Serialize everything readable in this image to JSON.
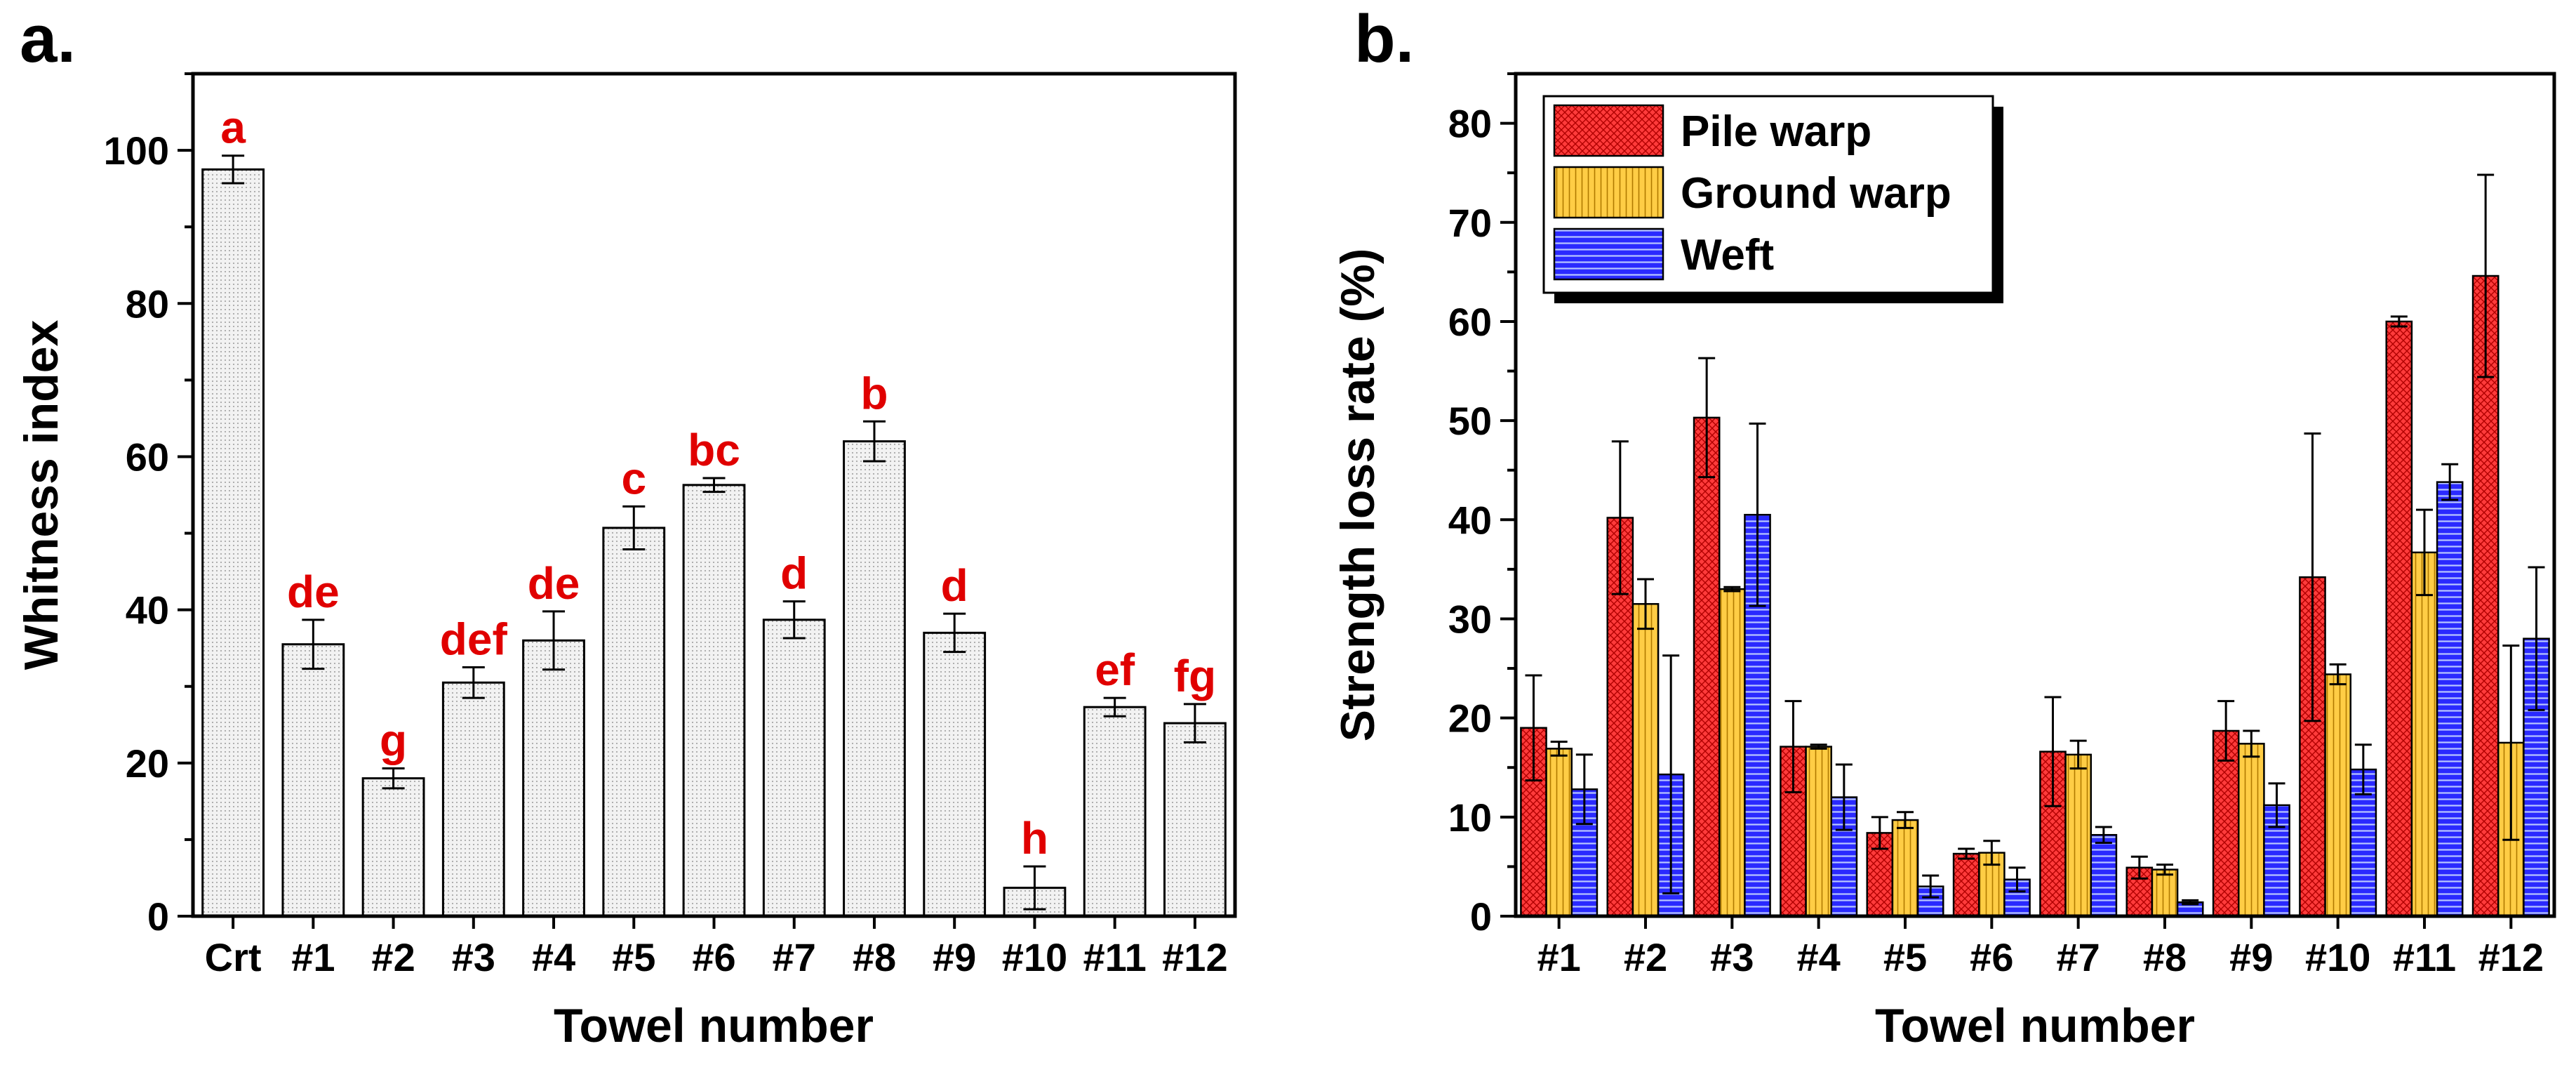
{
  "chart_data": [
    {
      "type": "bar",
      "panel": "a.",
      "categories": [
        "Crt",
        "#1",
        "#2",
        "#3",
        "#4",
        "#5",
        "#6",
        "#7",
        "#8",
        "#9",
        "#10",
        "#11",
        "#12"
      ],
      "values": [
        97.5,
        35.5,
        18,
        30.5,
        36,
        50.7,
        56.3,
        38.7,
        62,
        37,
        3.7,
        27.3,
        25.2
      ],
      "errors": [
        1.8,
        3.2,
        1.3,
        2.0,
        3.8,
        2.8,
        0.9,
        2.4,
        2.6,
        2.5,
        2.8,
        1.2,
        2.5
      ],
      "significance": [
        "a",
        "de",
        "g",
        "def",
        "de",
        "c",
        "bc",
        "d",
        "b",
        "d",
        "h",
        "ef",
        "fg"
      ],
      "xlabel": "Towel number",
      "ylabel": "Whitness index",
      "ylim": [
        0,
        110
      ],
      "yticks": [
        0,
        20,
        40,
        60,
        80,
        100
      ],
      "bar_fill": "#eeeeee",
      "sig_color": "#e00000"
    },
    {
      "type": "bar",
      "panel": "b.",
      "categories": [
        "#1",
        "#2",
        "#3",
        "#4",
        "#5",
        "#6",
        "#7",
        "#8",
        "#9",
        "#10",
        "#11",
        "#12"
      ],
      "series": [
        {
          "name": "Pile warp",
          "color": "#ff3b3b",
          "values": [
            19,
            40.2,
            50.3,
            17.1,
            8.4,
            6.3,
            16.6,
            4.9,
            18.7,
            34.2,
            60,
            64.6
          ],
          "errors": [
            5.3,
            7.7,
            6.0,
            4.6,
            1.6,
            0.5,
            5.5,
            1.1,
            3.0,
            14.5,
            0.5,
            10.2
          ]
        },
        {
          "name": "Ground warp",
          "color": "#ffc83c",
          "values": [
            16.9,
            31.5,
            33,
            17.1,
            9.7,
            6.4,
            16.3,
            4.7,
            17.4,
            24.4,
            36.7,
            17.5
          ],
          "errors": [
            0.7,
            2.5,
            0.2,
            0.2,
            0.8,
            1.2,
            1.4,
            0.5,
            1.3,
            1.0,
            4.3,
            9.8
          ]
        },
        {
          "name": "Weft",
          "color": "#2323ff",
          "values": [
            12.8,
            14.3,
            40.5,
            12,
            3,
            3.7,
            8.2,
            1.4,
            11.2,
            14.8,
            43.8,
            28
          ],
          "errors": [
            3.5,
            12.0,
            9.2,
            3.3,
            1.1,
            1.2,
            0.8,
            0.2,
            2.2,
            2.5,
            1.8,
            7.2
          ]
        }
      ],
      "xlabel": "Towel number",
      "ylabel": "Strength loss rate (%)",
      "ylim": [
        0,
        85
      ],
      "yticks": [
        0,
        10,
        20,
        30,
        40,
        50,
        60,
        70,
        80
      ],
      "legend_position": "top-left"
    }
  ]
}
